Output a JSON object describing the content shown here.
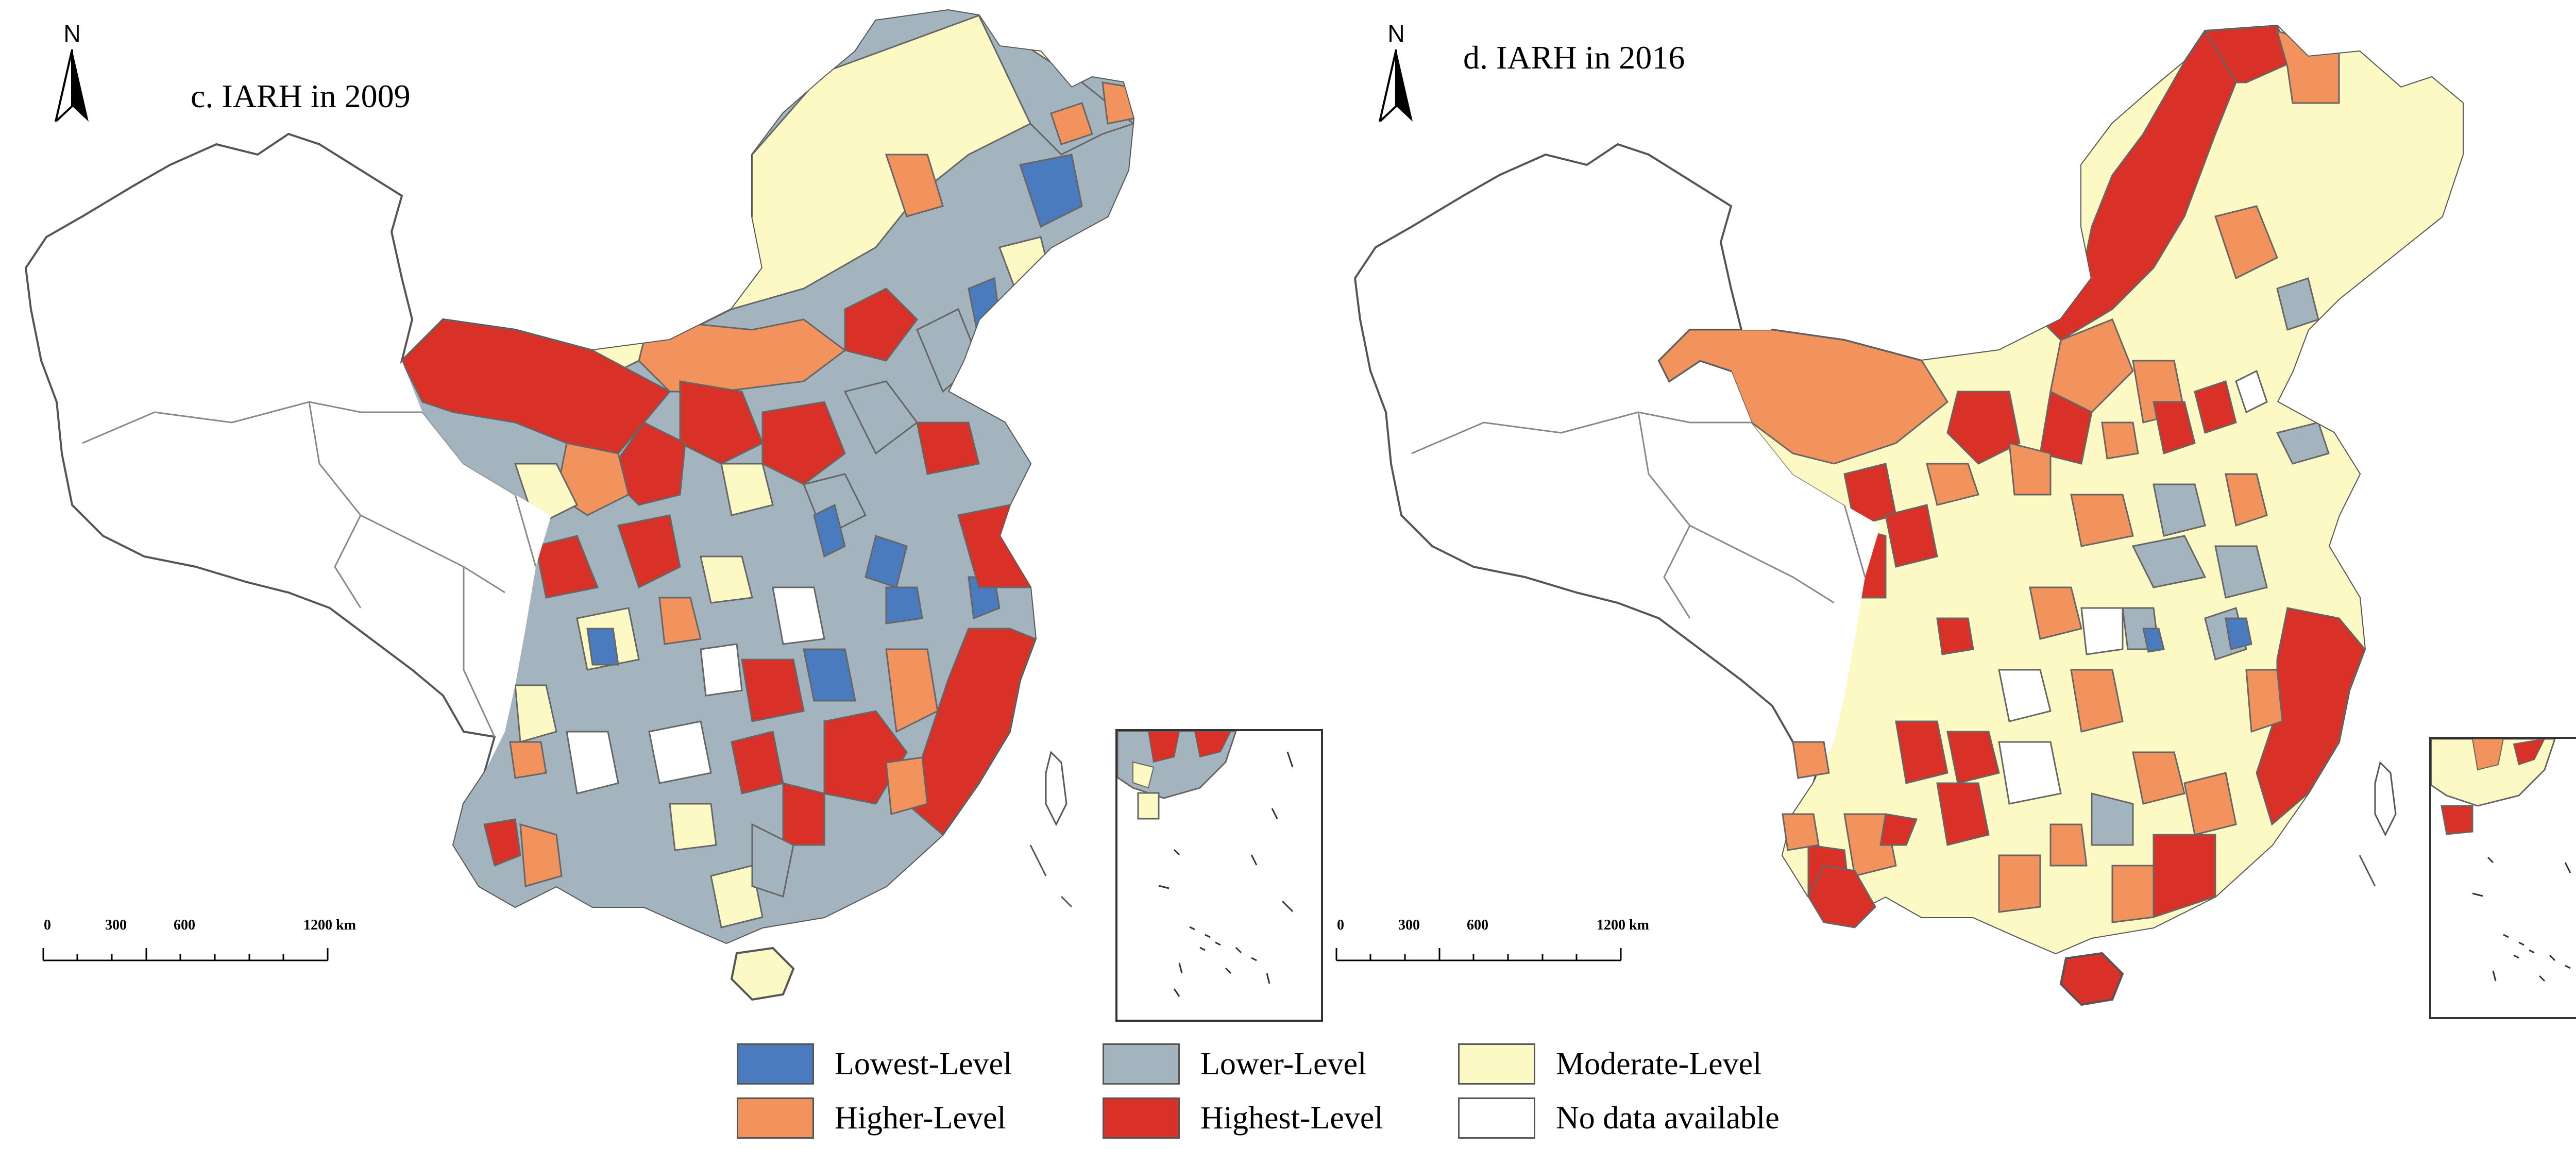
{
  "maps": [
    {
      "title": "c. IARH in 2009",
      "north_label": "N",
      "scale_labels": [
        "0",
        "300",
        "600",
        "1200 km"
      ]
    },
    {
      "title": "d. IARH in 2016",
      "north_label": "N",
      "scale_labels": [
        "0",
        "300",
        "600",
        "1200 km"
      ]
    }
  ],
  "legend": {
    "items": [
      {
        "label": "Lowest-Level",
        "color": "#4a7bbf"
      },
      {
        "label": "Lower-Level",
        "color": "#a4b4bf"
      },
      {
        "label": "Moderate-Level",
        "color": "#fdf9c4"
      },
      {
        "label": "Higher-Level",
        "color": "#f2935e"
      },
      {
        "label": "Highest-Level",
        "color": "#d93027"
      },
      {
        "label": "No data available",
        "color": "#ffffff"
      }
    ]
  },
  "colors": {
    "outline": "#555555",
    "region_border": "#777777"
  }
}
